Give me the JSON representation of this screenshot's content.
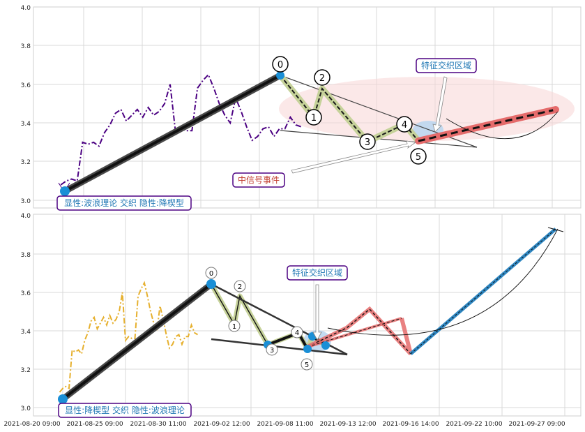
{
  "chart_data": [
    {
      "type": "line",
      "panel": "top",
      "ylim": [
        3.0,
        4.0
      ],
      "yticks": [
        "3.0",
        "3.2",
        "3.4",
        "3.6",
        "3.8",
        "4.0"
      ],
      "price_series": [
        [
          -0.02,
          3.08
        ],
        [
          0.0,
          3.1
        ],
        [
          0.02,
          3.11
        ],
        [
          0.04,
          3.1
        ],
        [
          0.06,
          3.3
        ],
        [
          0.08,
          3.29
        ],
        [
          0.1,
          3.3
        ],
        [
          0.12,
          3.28
        ],
        [
          0.14,
          3.35
        ],
        [
          0.16,
          3.39
        ],
        [
          0.18,
          3.45
        ],
        [
          0.2,
          3.47
        ],
        [
          0.22,
          3.41
        ],
        [
          0.24,
          3.44
        ],
        [
          0.26,
          3.47
        ],
        [
          0.28,
          3.43
        ],
        [
          0.3,
          3.48
        ],
        [
          0.32,
          3.44
        ],
        [
          0.34,
          3.46
        ],
        [
          0.36,
          3.5
        ],
        [
          0.38,
          3.6
        ],
        [
          0.4,
          3.35
        ],
        [
          0.42,
          3.37
        ],
        [
          0.44,
          3.36
        ],
        [
          0.46,
          3.36
        ],
        [
          0.48,
          3.58
        ],
        [
          0.5,
          3.62
        ],
        [
          0.52,
          3.65
        ],
        [
          0.54,
          3.58
        ],
        [
          0.56,
          3.5
        ],
        [
          0.58,
          3.44
        ],
        [
          0.6,
          3.4
        ],
        [
          0.62,
          3.53
        ],
        [
          0.64,
          3.46
        ],
        [
          0.66,
          3.38
        ],
        [
          0.68,
          3.31
        ],
        [
          0.7,
          3.33
        ],
        [
          0.72,
          3.37
        ],
        [
          0.74,
          3.38
        ],
        [
          0.76,
          3.33
        ],
        [
          0.78,
          3.37
        ],
        [
          0.8,
          3.37
        ],
        [
          0.82,
          3.43
        ],
        [
          0.84,
          3.39
        ],
        [
          0.86,
          3.38
        ]
      ],
      "wave_points": [
        {
          "label": "0",
          "x": 0.52,
          "y": 3.64
        },
        {
          "label": "1",
          "x": 0.59,
          "y": 3.43
        },
        {
          "label": "2",
          "x": 0.61,
          "y": 3.59
        },
        {
          "label": "3",
          "x": 0.7,
          "y": 3.32
        },
        {
          "label": "4",
          "x": 0.77,
          "y": 3.38
        },
        {
          "label": "5",
          "x": 0.79,
          "y": 3.3
        }
      ],
      "annotations": [
        "特征交织区域",
        "中信号事件",
        "显性:波浪理论 交织 隐性:降楔型"
      ]
    },
    {
      "type": "line",
      "panel": "bottom",
      "ylim": [
        3.0,
        4.0
      ],
      "yticks": [
        "3.0",
        "3.2",
        "3.4",
        "3.6",
        "3.8",
        "4.0"
      ],
      "price_series": [
        [
          -0.02,
          3.08
        ],
        [
          0.0,
          3.1
        ],
        [
          0.02,
          3.11
        ],
        [
          0.04,
          3.1
        ],
        [
          0.06,
          3.3
        ],
        [
          0.08,
          3.29
        ],
        [
          0.1,
          3.3
        ],
        [
          0.12,
          3.28
        ],
        [
          0.14,
          3.35
        ],
        [
          0.16,
          3.39
        ],
        [
          0.18,
          3.45
        ],
        [
          0.2,
          3.47
        ],
        [
          0.22,
          3.41
        ],
        [
          0.24,
          3.44
        ],
        [
          0.26,
          3.47
        ],
        [
          0.28,
          3.43
        ],
        [
          0.3,
          3.48
        ],
        [
          0.32,
          3.44
        ],
        [
          0.34,
          3.46
        ],
        [
          0.36,
          3.5
        ],
        [
          0.38,
          3.6
        ],
        [
          0.4,
          3.35
        ],
        [
          0.42,
          3.37
        ],
        [
          0.44,
          3.36
        ],
        [
          0.46,
          3.36
        ],
        [
          0.48,
          3.58
        ],
        [
          0.5,
          3.62
        ],
        [
          0.52,
          3.65
        ],
        [
          0.54,
          3.58
        ],
        [
          0.56,
          3.5
        ],
        [
          0.58,
          3.44
        ],
        [
          0.6,
          3.4
        ],
        [
          0.62,
          3.53
        ],
        [
          0.64,
          3.46
        ],
        [
          0.66,
          3.38
        ],
        [
          0.68,
          3.31
        ],
        [
          0.7,
          3.33
        ],
        [
          0.72,
          3.37
        ],
        [
          0.74,
          3.38
        ],
        [
          0.76,
          3.33
        ],
        [
          0.78,
          3.37
        ],
        [
          0.8,
          3.37
        ],
        [
          0.82,
          3.43
        ],
        [
          0.84,
          3.39
        ],
        [
          0.86,
          3.38
        ]
      ],
      "wave_points": [
        {
          "label": "0",
          "x": 0.52,
          "y": 3.64
        },
        {
          "label": "1",
          "x": 0.56,
          "y": 3.42
        },
        {
          "label": "2",
          "x": 0.59,
          "y": 3.58
        },
        {
          "label": "3",
          "x": 0.65,
          "y": 3.32
        },
        {
          "label": "4",
          "x": 0.69,
          "y": 3.38
        },
        {
          "label": "5",
          "x": 0.72,
          "y": 3.3
        }
      ],
      "annotations": [
        "特征交织区域",
        "显性:降楔型 交织 隐性:波浪理论"
      ]
    }
  ],
  "x_tick_labels": [
    "2021-08-20 09:00",
    "2021-08-25 09:00",
    "2021-08-30 11:00",
    "2021-09-02 12:00",
    "2021-09-08 11:00",
    "2021-09-13 12:00",
    "2021-09-16 14:00",
    "2021-09-22 10:00",
    "2021-09-27 09:00"
  ],
  "top_label_region": "特征交织区域",
  "top_label_signal": "中信号事件",
  "top_label_legend": "显性:波浪理论 交织 隐性:降楔型",
  "bottom_label_region": "特征交织区域",
  "bottom_label_legend": "显性:降楔型 交织 隐性:波浪理论",
  "colors": {
    "price_top": "#4b0082",
    "price_bottom": "#e6b02e",
    "wave_dark": "#1a1a1a",
    "wave_fill": "#c6d29a",
    "ellipse_fill": "#f7d6d6",
    "target_red": "#e56b6b",
    "dot_blue": "#1a8fd6",
    "label_border": "#4b0082"
  }
}
